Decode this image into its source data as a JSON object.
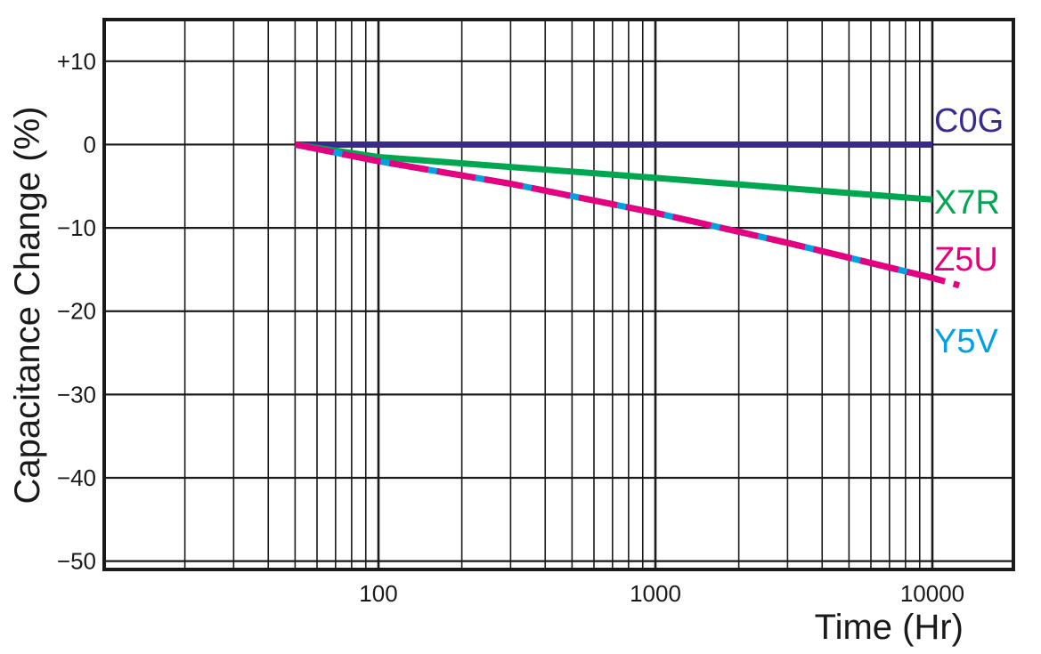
{
  "chart_data": {
    "type": "line",
    "x_scale": "log",
    "xlabel": "Time (Hr)",
    "ylabel": "Capacitance Change (%)",
    "xlim": [
      10,
      20000
    ],
    "ylim": [
      -51,
      15
    ],
    "grid": true,
    "x_tick_labels": [
      {
        "value": 100,
        "label": "100"
      },
      {
        "value": 1000,
        "label": "1000"
      },
      {
        "value": 10000,
        "label": "10000"
      }
    ],
    "y_tick_labels": [
      {
        "value": 10,
        "label": "+10"
      },
      {
        "value": 0,
        "label": "0"
      },
      {
        "value": -10,
        "label": "−10"
      },
      {
        "value": -20,
        "label": "−20"
      },
      {
        "value": -30,
        "label": "−30"
      },
      {
        "value": -40,
        "label": "−40"
      },
      {
        "value": -50,
        "label": "−50"
      }
    ],
    "series": [
      {
        "name": "C0G",
        "color": "#3a2a8c",
        "style": "solid",
        "x": [
          50,
          100,
          1000,
          10000
        ],
        "y": [
          0,
          0,
          0,
          0
        ]
      },
      {
        "name": "X7R",
        "color": "#00a650",
        "style": "solid",
        "x": [
          50,
          100,
          1000,
          10000
        ],
        "y": [
          0,
          -1.5,
          -4.0,
          -6.6
        ]
      },
      {
        "name": "Z5U",
        "color": "#e4007f",
        "style": "dashed",
        "x": [
          50,
          100,
          300,
          1000,
          3000,
          10000,
          12500
        ],
        "y": [
          0,
          -2.0,
          -4.7,
          -8.2,
          -11.8,
          -16.0,
          -16.9
        ]
      },
      {
        "name": "Y5V",
        "color": "#00a0e3",
        "style": "solid",
        "x": [
          50,
          100,
          300,
          1000,
          3000,
          10000
        ],
        "y": [
          0,
          -2.0,
          -4.7,
          -8.2,
          -11.8,
          -16.0
        ]
      }
    ]
  }
}
